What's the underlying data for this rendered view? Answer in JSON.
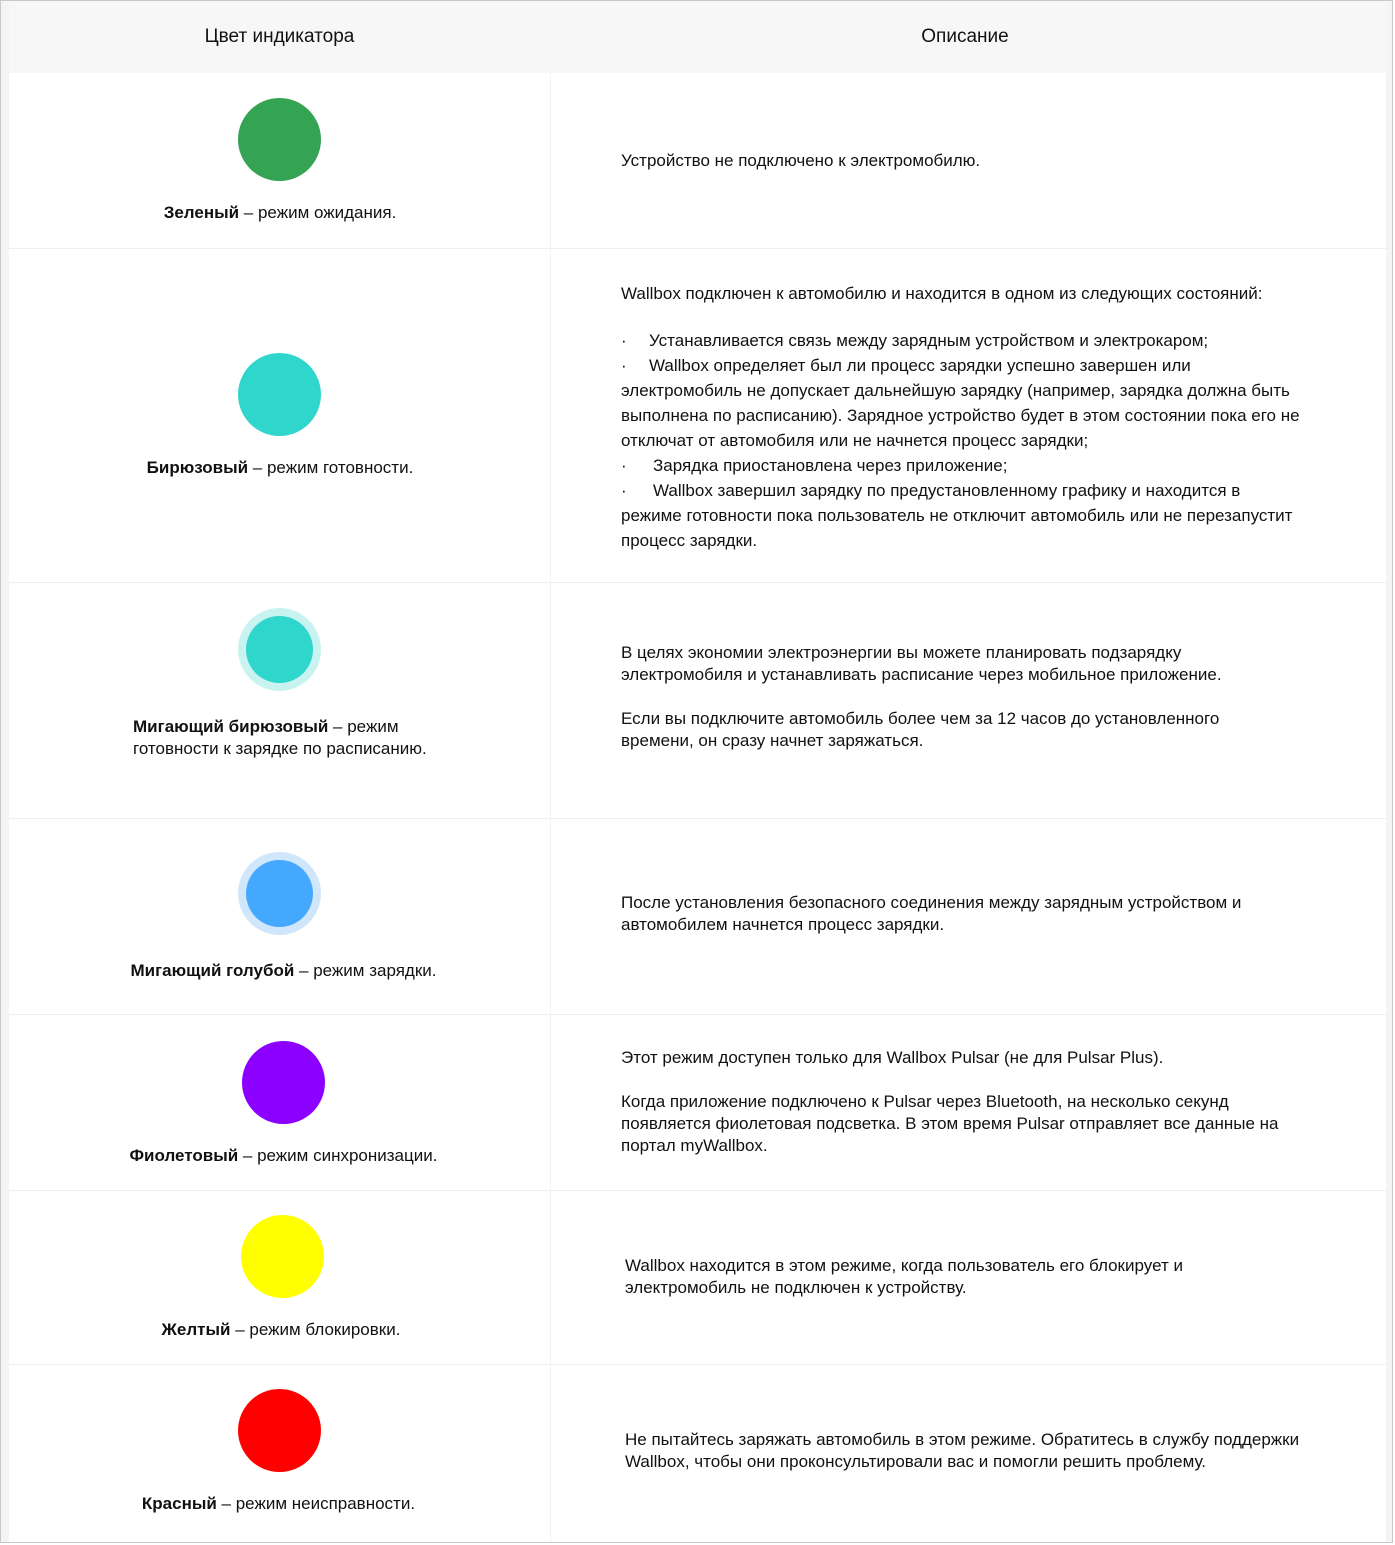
{
  "header": {
    "col_color": "Цвет индикатора",
    "col_description": "Описание"
  },
  "rows": [
    {
      "color_hex": "#34a353",
      "name": "Зеленый",
      "rest": " – режим ожидания.",
      "description": [
        "Устройство не подключено к электромобилю."
      ]
    },
    {
      "color_hex": "#2ed6cc",
      "name": "Бирюзовый",
      "rest": " – режим готовности.",
      "intro": "Wallbox подключен к автомобилю и находится в одном из следующих состояний:",
      "bullet_mark": "·",
      "bullets": [
        "Устанавливается связь между зарядным устройством и электрокаром;",
        "Wallbox определяет был ли процесс зарядки успешно завершен или",
        "Зарядка приостановлена через приложение;",
        "Wallbox завершил зарядку по предустановленному графику и находится в"
      ],
      "continuation_1": "электромобиль не допускает дальнейшую зарядку (например, зарядка должна быть выполнена по расписанию). Зарядное устройство будет в этом состоянии пока его не отключат от автомобиля или не начнется процесс зарядки;",
      "continuation_2": "режиме готовности пока пользователь не отключит автомобиль или не перезапустит процесс зарядки."
    },
    {
      "color_hex": "#2ed6cc",
      "halo_hex": "#c8f3f0",
      "name": "Мигающий бирюзовый",
      "rest": " – режим готовности к зарядке по расписанию.",
      "description": [
        "В целях экономии электроэнергии вы можете планировать подзарядку электромобиля и устанавливать расписание через мобильное приложение.",
        "Если вы подключите автомобиль более чем за 12 часов до установленного времени, он сразу начнет заряжаться."
      ]
    },
    {
      "color_hex": "#45a8ff",
      "halo_hex": "#cfe6fb",
      "name": "Мигающий голубой",
      "rest": " – режим зарядки.",
      "description": [
        "После установления безопасного соединения между зарядным устройством и автомобилем начнется процесс зарядки."
      ]
    },
    {
      "color_hex": "#8b00ff",
      "name": "Фиолетовый",
      "rest": " – режим синхронизации.",
      "description": [
        "Этот режим доступен только для Wallbox Pulsar (не для Pulsar Plus).",
        "Когда приложение подключено к Pulsar через Bluetooth, на несколько секунд появляется фиолетовая подсветка. В этом время Pulsar отправляет все данные на портал myWallbox."
      ]
    },
    {
      "color_hex": "#ffff00",
      "name": "Желтый",
      "rest": " – режим блокировки.",
      "description": [
        "Wallbox находится в этом режиме, когда пользователь его блокирует и электромобиль не подключен к устройству."
      ]
    },
    {
      "color_hex": "#ff0000",
      "name": "Красный",
      "rest": " – режим неисправности.",
      "description": [
        "Не пытайтесь заряжать автомобиль в этом режиме. Обратитесь в службу поддержки Wallbox, чтобы они проконсультировали вас и помогли решить проблему."
      ]
    }
  ]
}
